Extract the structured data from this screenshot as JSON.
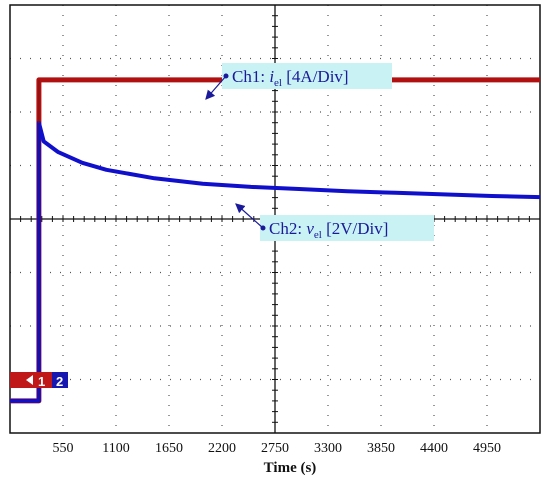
{
  "chart_data": {
    "type": "line",
    "xlabel": "Time (s)",
    "xlim": [
      0,
      5500
    ],
    "x_ticks": [
      550,
      1100,
      1650,
      2200,
      2750,
      3300,
      3850,
      4400,
      4950
    ],
    "grid": true,
    "series": [
      {
        "name": "Ch1",
        "color": "#b01010",
        "x": [
          0,
          300,
          300,
          5500
        ],
        "y": [
          -3.4,
          -3.4,
          2.6,
          2.6
        ]
      },
      {
        "name": "Ch2",
        "color": "#1010cc",
        "x": [
          0,
          300,
          300,
          350,
          500,
          750,
          1000,
          1500,
          2000,
          2500,
          3000,
          3500,
          4000,
          4500,
          5000,
          5500
        ],
        "y": [
          -3.4,
          -3.4,
          1.8,
          1.45,
          1.25,
          1.05,
          0.92,
          0.76,
          0.66,
          0.6,
          0.56,
          0.52,
          0.49,
          0.46,
          0.43,
          0.41
        ]
      }
    ],
    "annotations": [
      {
        "prefix": "Ch1: ",
        "symbol": "i",
        "sub": "el",
        "suffix": " [4A/Div]"
      },
      {
        "prefix": "Ch2: ",
        "symbol": "v",
        "sub": "el",
        "suffix": " [2V/Div]"
      }
    ],
    "channel_markers": {
      "ch1": "1",
      "ch2": "2"
    }
  }
}
